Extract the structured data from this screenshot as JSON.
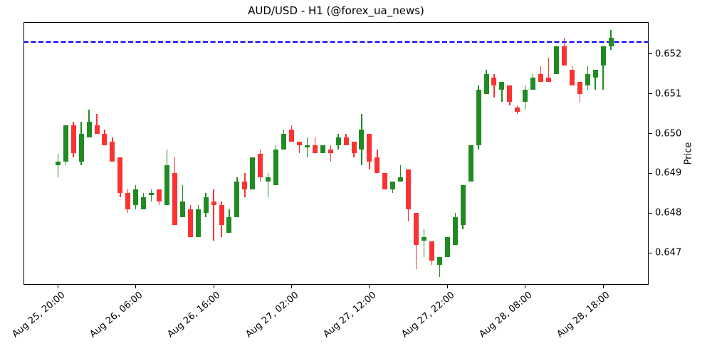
{
  "title": "AUD/USD - H1 (@forex_ua_news)",
  "chart_data": {
    "type": "candlestick",
    "title": "AUD/USD - H1 (@forex_ua_news)",
    "xlabel": "",
    "ylabel": "Price",
    "ylim": [
      0.6462,
      0.6528
    ],
    "grid": false,
    "legend": "none",
    "colors": {
      "up": "#208b22",
      "down": "#fc3232",
      "hline": "#0000ff",
      "axis": "#000000",
      "background": "#ffffff"
    },
    "hline": {
      "price": 0.6523,
      "style": "dashed",
      "color": "#0000ff",
      "name": "resistance-level"
    },
    "yticks": [
      {
        "value": 0.647,
        "label": "0.647"
      },
      {
        "value": 0.648,
        "label": "0.648"
      },
      {
        "value": 0.649,
        "label": "0.649"
      },
      {
        "value": 0.65,
        "label": "0.650"
      },
      {
        "value": 0.651,
        "label": "0.651"
      },
      {
        "value": 0.652,
        "label": "0.652"
      }
    ],
    "xticks": [
      {
        "index": 0,
        "label": "Aug 25, 20:00"
      },
      {
        "index": 10,
        "label": "Aug 26, 06:00"
      },
      {
        "index": 20,
        "label": "Aug 26, 16:00"
      },
      {
        "index": 30,
        "label": "Aug 27, 02:00"
      },
      {
        "index": 40,
        "label": "Aug 27, 12:00"
      },
      {
        "index": 50,
        "label": "Aug 27, 22:00"
      },
      {
        "index": 60,
        "label": "Aug 28, 08:00"
      },
      {
        "index": 70,
        "label": "Aug 28, 18:00"
      }
    ],
    "candles": [
      {
        "t": "Aug 25, 20:00",
        "o": 0.6492,
        "h": 0.6495,
        "l": 0.6489,
        "c": 0.6493
      },
      {
        "t": "Aug 25, 21:00",
        "o": 0.6493,
        "h": 0.6502,
        "l": 0.6492,
        "c": 0.6502
      },
      {
        "t": "Aug 25, 22:00",
        "o": 0.6502,
        "h": 0.6503,
        "l": 0.6494,
        "c": 0.6495
      },
      {
        "t": "Aug 25, 23:00",
        "o": 0.6493,
        "h": 0.6503,
        "l": 0.6492,
        "c": 0.65
      },
      {
        "t": "Aug 26, 00:00",
        "o": 0.6499,
        "h": 0.6506,
        "l": 0.6499,
        "c": 0.6503
      },
      {
        "t": "Aug 26, 01:00",
        "o": 0.6502,
        "h": 0.6505,
        "l": 0.65,
        "c": 0.65
      },
      {
        "t": "Aug 26, 02:00",
        "o": 0.65,
        "h": 0.6501,
        "l": 0.6497,
        "c": 0.6497
      },
      {
        "t": "Aug 26, 03:00",
        "o": 0.6498,
        "h": 0.6499,
        "l": 0.6493,
        "c": 0.6493
      },
      {
        "t": "Aug 26, 04:00",
        "o": 0.6494,
        "h": 0.6494,
        "l": 0.6484,
        "c": 0.6485
      },
      {
        "t": "Aug 26, 05:00",
        "o": 0.6485,
        "h": 0.6486,
        "l": 0.648,
        "c": 0.6481
      },
      {
        "t": "Aug 26, 06:00",
        "o": 0.6482,
        "h": 0.6487,
        "l": 0.6481,
        "c": 0.6486
      },
      {
        "t": "Aug 26, 07:00",
        "o": 0.6481,
        "h": 0.6485,
        "l": 0.6481,
        "c": 0.6484
      },
      {
        "t": "Aug 26, 08:00",
        "o": 0.6485,
        "h": 0.6486,
        "l": 0.6483,
        "c": 0.6485
      },
      {
        "t": "Aug 26, 09:00",
        "o": 0.6486,
        "h": 0.6486,
        "l": 0.6482,
        "c": 0.6483
      },
      {
        "t": "Aug 26, 10:00",
        "o": 0.6482,
        "h": 0.6496,
        "l": 0.6482,
        "c": 0.6492
      },
      {
        "t": "Aug 26, 11:00",
        "o": 0.649,
        "h": 0.6494,
        "l": 0.6477,
        "c": 0.6477
      },
      {
        "t": "Aug 26, 12:00",
        "o": 0.6479,
        "h": 0.6487,
        "l": 0.6479,
        "c": 0.6483
      },
      {
        "t": "Aug 26, 13:00",
        "o": 0.6481,
        "h": 0.6482,
        "l": 0.6474,
        "c": 0.6474
      },
      {
        "t": "Aug 26, 14:00",
        "o": 0.6474,
        "h": 0.6482,
        "l": 0.6474,
        "c": 0.6481
      },
      {
        "t": "Aug 26, 15:00",
        "o": 0.648,
        "h": 0.6485,
        "l": 0.6479,
        "c": 0.6484
      },
      {
        "t": "Aug 26, 16:00",
        "o": 0.6483,
        "h": 0.6486,
        "l": 0.6473,
        "c": 0.6482
      },
      {
        "t": "Aug 26, 17:00",
        "o": 0.6482,
        "h": 0.6483,
        "l": 0.6474,
        "c": 0.6477
      },
      {
        "t": "Aug 26, 18:00",
        "o": 0.6475,
        "h": 0.6481,
        "l": 0.6475,
        "c": 0.6479
      },
      {
        "t": "Aug 26, 19:00",
        "o": 0.6479,
        "h": 0.6489,
        "l": 0.6479,
        "c": 0.6488
      },
      {
        "t": "Aug 26, 20:00",
        "o": 0.6488,
        "h": 0.649,
        "l": 0.6484,
        "c": 0.6486
      },
      {
        "t": "Aug 26, 21:00",
        "o": 0.6486,
        "h": 0.6494,
        "l": 0.6486,
        "c": 0.6494
      },
      {
        "t": "Aug 26, 22:00",
        "o": 0.6495,
        "h": 0.6496,
        "l": 0.6488,
        "c": 0.6489
      },
      {
        "t": "Aug 26, 23:00",
        "o": 0.6488,
        "h": 0.649,
        "l": 0.6484,
        "c": 0.6489
      },
      {
        "t": "Aug 27, 00:00",
        "o": 0.6487,
        "h": 0.6497,
        "l": 0.6487,
        "c": 0.6496
      },
      {
        "t": "Aug 27, 01:00",
        "o": 0.6496,
        "h": 0.6501,
        "l": 0.6496,
        "c": 0.65
      },
      {
        "t": "Aug 27, 02:00",
        "o": 0.6501,
        "h": 0.6502,
        "l": 0.6498,
        "c": 0.6498
      },
      {
        "t": "Aug 27, 03:00",
        "o": 0.6498,
        "h": 0.6498,
        "l": 0.6495,
        "c": 0.6497
      },
      {
        "t": "Aug 27, 04:00",
        "o": 0.6497,
        "h": 0.6499,
        "l": 0.6494,
        "c": 0.6497
      },
      {
        "t": "Aug 27, 05:00",
        "o": 0.6497,
        "h": 0.6499,
        "l": 0.6495,
        "c": 0.6495
      },
      {
        "t": "Aug 27, 06:00",
        "o": 0.6495,
        "h": 0.6497,
        "l": 0.6495,
        "c": 0.6497
      },
      {
        "t": "Aug 27, 07:00",
        "o": 0.6496,
        "h": 0.6497,
        "l": 0.6493,
        "c": 0.6495
      },
      {
        "t": "Aug 27, 08:00",
        "o": 0.6497,
        "h": 0.65,
        "l": 0.6496,
        "c": 0.6499
      },
      {
        "t": "Aug 27, 09:00",
        "o": 0.6499,
        "h": 0.65,
        "l": 0.6497,
        "c": 0.6497
      },
      {
        "t": "Aug 27, 10:00",
        "o": 0.6498,
        "h": 0.6498,
        "l": 0.6494,
        "c": 0.6495
      },
      {
        "t": "Aug 27, 11:00",
        "o": 0.6496,
        "h": 0.6505,
        "l": 0.6492,
        "c": 0.6501
      },
      {
        "t": "Aug 27, 12:00",
        "o": 0.65,
        "h": 0.65,
        "l": 0.6491,
        "c": 0.6493
      },
      {
        "t": "Aug 27, 13:00",
        "o": 0.6494,
        "h": 0.6496,
        "l": 0.649,
        "c": 0.649
      },
      {
        "t": "Aug 27, 14:00",
        "o": 0.649,
        "h": 0.649,
        "l": 0.6486,
        "c": 0.6486
      },
      {
        "t": "Aug 27, 15:00",
        "o": 0.6486,
        "h": 0.6488,
        "l": 0.6485,
        "c": 0.6488
      },
      {
        "t": "Aug 27, 16:00",
        "o": 0.6488,
        "h": 0.6492,
        "l": 0.6488,
        "c": 0.6489
      },
      {
        "t": "Aug 27, 17:00",
        "o": 0.6491,
        "h": 0.6491,
        "l": 0.6478,
        "c": 0.6481
      },
      {
        "t": "Aug 27, 18:00",
        "o": 0.648,
        "h": 0.648,
        "l": 0.6466,
        "c": 0.6472
      },
      {
        "t": "Aug 27, 19:00",
        "o": 0.6473,
        "h": 0.6476,
        "l": 0.6469,
        "c": 0.6474
      },
      {
        "t": "Aug 27, 20:00",
        "o": 0.6473,
        "h": 0.6473,
        "l": 0.6467,
        "c": 0.6468
      },
      {
        "t": "Aug 27, 21:00",
        "o": 0.6467,
        "h": 0.6469,
        "l": 0.6464,
        "c": 0.6469
      },
      {
        "t": "Aug 27, 22:00",
        "o": 0.6469,
        "h": 0.6474,
        "l": 0.6469,
        "c": 0.6474
      },
      {
        "t": "Aug 27, 23:00",
        "o": 0.6472,
        "h": 0.648,
        "l": 0.6472,
        "c": 0.6479
      },
      {
        "t": "Aug 28, 00:00",
        "o": 0.6477,
        "h": 0.6487,
        "l": 0.6476,
        "c": 0.6487
      },
      {
        "t": "Aug 28, 01:00",
        "o": 0.6488,
        "h": 0.6497,
        "l": 0.6488,
        "c": 0.6497
      },
      {
        "t": "Aug 28, 02:00",
        "o": 0.6497,
        "h": 0.6512,
        "l": 0.6496,
        "c": 0.6511
      },
      {
        "t": "Aug 28, 03:00",
        "o": 0.651,
        "h": 0.6516,
        "l": 0.651,
        "c": 0.6515
      },
      {
        "t": "Aug 28, 04:00",
        "o": 0.6514,
        "h": 0.6515,
        "l": 0.6509,
        "c": 0.6512
      },
      {
        "t": "Aug 28, 05:00",
        "o": 0.6511,
        "h": 0.6513,
        "l": 0.6508,
        "c": 0.6513
      },
      {
        "t": "Aug 28, 06:00",
        "o": 0.6512,
        "h": 0.6512,
        "l": 0.6507,
        "c": 0.6508
      },
      {
        "t": "Aug 28, 07:00",
        "o": 0.65065,
        "h": 0.6507,
        "l": 0.6505,
        "c": 0.65055
      },
      {
        "t": "Aug 28, 08:00",
        "o": 0.6508,
        "h": 0.6512,
        "l": 0.6506,
        "c": 0.6511
      },
      {
        "t": "Aug 28, 09:00",
        "o": 0.6511,
        "h": 0.6515,
        "l": 0.6511,
        "c": 0.6514
      },
      {
        "t": "Aug 28, 10:00",
        "o": 0.6515,
        "h": 0.6517,
        "l": 0.6513,
        "c": 0.6513
      },
      {
        "t": "Aug 28, 11:00",
        "o": 0.6514,
        "h": 0.6519,
        "l": 0.6513,
        "c": 0.6513
      },
      {
        "t": "Aug 28, 12:00",
        "o": 0.6515,
        "h": 0.6522,
        "l": 0.6515,
        "c": 0.6522
      },
      {
        "t": "Aug 28, 13:00",
        "o": 0.6522,
        "h": 0.6524,
        "l": 0.6517,
        "c": 0.6517
      },
      {
        "t": "Aug 28, 14:00",
        "o": 0.6516,
        "h": 0.6517,
        "l": 0.6512,
        "c": 0.6512
      },
      {
        "t": "Aug 28, 15:00",
        "o": 0.6513,
        "h": 0.6513,
        "l": 0.6508,
        "c": 0.651
      },
      {
        "t": "Aug 28, 16:00",
        "o": 0.6512,
        "h": 0.6517,
        "l": 0.6511,
        "c": 0.6515
      },
      {
        "t": "Aug 28, 17:00",
        "o": 0.6514,
        "h": 0.6516,
        "l": 0.6511,
        "c": 0.6516
      },
      {
        "t": "Aug 28, 18:00",
        "o": 0.6517,
        "h": 0.6522,
        "l": 0.6511,
        "c": 0.6522
      },
      {
        "t": "Aug 28, 19:00",
        "o": 0.6522,
        "h": 0.6526,
        "l": 0.6521,
        "c": 0.6524
      }
    ]
  }
}
